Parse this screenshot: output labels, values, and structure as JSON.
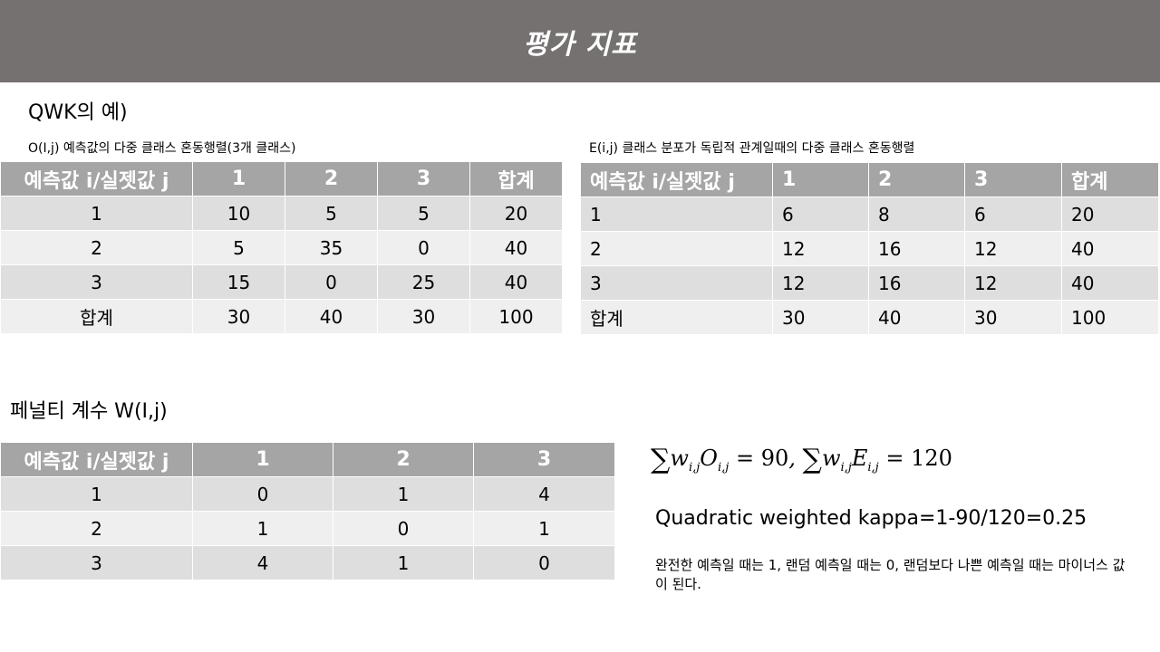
{
  "title": "평가 지표",
  "qwk_heading": "QWK의 예)",
  "observed": {
    "caption": "O(I,j) 예측값의 다중 클래스 혼동행렬(3개 클래스)",
    "headers": [
      "예측값 i/실젯값 j",
      "1",
      "2",
      "3",
      "합계"
    ],
    "rows": [
      [
        "1",
        "10",
        "5",
        "5",
        "20"
      ],
      [
        "2",
        "5",
        "35",
        "0",
        "40"
      ],
      [
        "3",
        "15",
        "0",
        "25",
        "40"
      ],
      [
        "합계",
        "30",
        "40",
        "30",
        "100"
      ]
    ]
  },
  "expected": {
    "caption": "E(i,j) 클래스 분포가 독립적 관계일때의 다중 클래스 혼동행렬",
    "headers": [
      "예측값 i/실젯값 j",
      "1",
      "2",
      "3",
      "합계"
    ],
    "rows": [
      [
        "1",
        "6",
        "8",
        "6",
        "20"
      ],
      [
        "2",
        "12",
        "16",
        "12",
        "40"
      ],
      [
        "3",
        "12",
        "16",
        "12",
        "40"
      ],
      [
        "합계",
        "30",
        "40",
        "30",
        "100"
      ]
    ]
  },
  "penalty": {
    "heading": "페널티 계수 W(I,j)",
    "headers": [
      "예측값 i/실젯값 j",
      "1",
      "2",
      "3"
    ],
    "rows": [
      [
        "1",
        "0",
        "1",
        "4"
      ],
      [
        "2",
        "1",
        "0",
        "1"
      ],
      [
        "3",
        "4",
        "1",
        "0"
      ]
    ]
  },
  "formula": {
    "sum1_value": "90",
    "sum2_value": "120"
  },
  "kappa": "Quadratic weighted kappa=1-90/120=0.25",
  "note": "완전한 예측일 때는 1, 랜덤 예측일 때는 0, 랜덤보다 나쁜 예측일 때는 마이너스 값이 된다."
}
